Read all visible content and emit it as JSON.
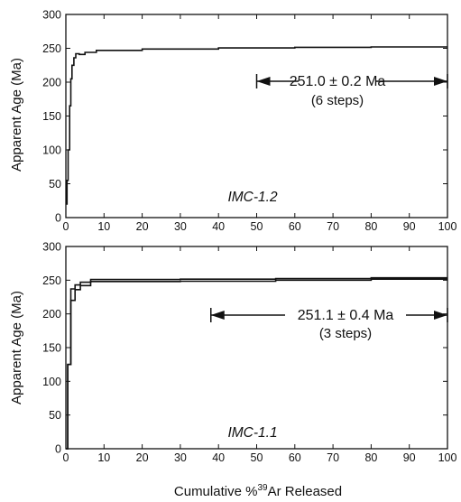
{
  "chart_data": [
    {
      "type": "line",
      "panel": "top",
      "title": "",
      "xlabel": "",
      "ylabel": "Apparent Age (Ma)",
      "xlim": [
        0,
        100
      ],
      "ylim": [
        0,
        300
      ],
      "x_ticks": [
        "0",
        "10",
        "20",
        "30",
        "40",
        "50",
        "60",
        "70",
        "80",
        "90",
        "100"
      ],
      "y_ticks": [
        "0",
        "50",
        "100",
        "150",
        "200",
        "250",
        "300"
      ],
      "series": [
        {
          "x": [
            0,
            0.3,
            0.3,
            0.6,
            0.6,
            1.0,
            1.0,
            1.3,
            1.3,
            1.6,
            1.6,
            2.1,
            2.1,
            2.6,
            2.6,
            3.5,
            3.5,
            5.0,
            5.0,
            8.0,
            8.0,
            20.0,
            20.0,
            40.0,
            40.0,
            60.0,
            60.0,
            80.0,
            80.0,
            100.0
          ],
          "y": [
            20,
            20,
            55,
            55,
            100,
            100,
            165,
            165,
            205,
            205,
            225,
            225,
            236,
            236,
            242,
            242,
            241,
            241,
            244,
            244,
            247,
            247,
            249,
            249,
            250.5,
            250.5,
            251.5,
            251.5,
            252,
            252
          ]
        }
      ],
      "plateau": {
        "label": "251.0 ± 0.2 Ma",
        "steps": "(6 steps)",
        "x_range": [
          50,
          100
        ]
      },
      "sample_label": "IMC-1.2"
    },
    {
      "type": "line",
      "panel": "bottom",
      "title": "",
      "xlabel": "Cumulative %39Ar Released",
      "ylabel": "Apparent Age (Ma)",
      "xlim": [
        0,
        100
      ],
      "ylim": [
        0,
        300
      ],
      "x_ticks": [
        "0",
        "10",
        "20",
        "30",
        "40",
        "50",
        "60",
        "70",
        "80",
        "90",
        "100"
      ],
      "y_ticks": [
        "0",
        "50",
        "100",
        "150",
        "200",
        "250",
        "300"
      ],
      "series": [
        {
          "x": [
            0,
            0.5,
            0.5,
            1.3,
            1.3,
            2.4,
            2.4,
            3.8,
            3.8,
            6.5,
            6.5,
            30.0,
            30.0,
            55.0,
            55.0,
            80.0,
            80.0,
            100.0
          ],
          "y": [
            0,
            0,
            125,
            125,
            220,
            220,
            236,
            236,
            242,
            242,
            248,
            248,
            248.5,
            248.5,
            250,
            250,
            251.5,
            251.5
          ]
        },
        {
          "x": [
            0,
            0.5,
            0.5,
            1.3,
            1.3,
            2.4,
            2.4,
            3.8,
            3.8,
            6.5,
            6.5,
            30.0,
            30.0,
            55.0,
            55.0,
            80.0,
            80.0,
            100.0
          ],
          "y": [
            0,
            0,
            125,
            125,
            237,
            237,
            243,
            243,
            247,
            247,
            251,
            251,
            251.5,
            251.5,
            252.5,
            252.5,
            253.5,
            253.5
          ]
        }
      ],
      "plateau": {
        "label": "251.1 ± 0.4 Ma",
        "steps": "(3 steps)",
        "x_range": [
          38,
          100
        ]
      },
      "sample_label": "IMC-1.1"
    }
  ],
  "xlabel_main": "Cumulative %",
  "xlabel_sup": "39",
  "xlabel_end": "Ar Released"
}
